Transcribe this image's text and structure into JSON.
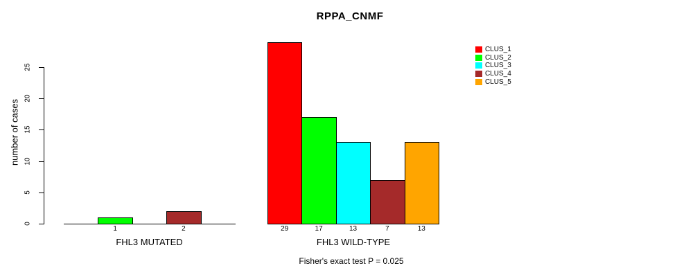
{
  "chart_data": {
    "type": "bar",
    "title": "RPPA_CNMF",
    "ylabel": "number of cases",
    "xlabel": "",
    "ylim": [
      0,
      29
    ],
    "yticks": [
      0,
      5,
      10,
      15,
      20,
      25
    ],
    "grid": false,
    "legend_position": "top-right",
    "legend": [
      {
        "label": "CLUS_1",
        "color": "#FF0000"
      },
      {
        "label": "CLUS_2",
        "color": "#00FF00"
      },
      {
        "label": "CLUS_3",
        "color": "#00FFFF"
      },
      {
        "label": "CLUS_4",
        "color": "#A52A2A"
      },
      {
        "label": "CLUS_5",
        "color": "#FFA500"
      }
    ],
    "series_note": "bars in each group follow legend order CLUS_1..CLUS_5",
    "groups": [
      {
        "label": "FHL3 MUTATED",
        "values": [
          0,
          1,
          0,
          2,
          0
        ],
        "bar_labels": [
          "",
          "1",
          "",
          "2",
          ""
        ]
      },
      {
        "label": "FHL3 WILD-TYPE",
        "values": [
          29,
          17,
          13,
          7,
          13
        ],
        "bar_labels": [
          "29",
          "17",
          "13",
          "7",
          "13"
        ]
      }
    ],
    "footnote": "Fisher's exact test P = 0.025"
  },
  "colors": {
    "background": "#FFFFFF",
    "axis": "#000000",
    "text": "#000000"
  }
}
